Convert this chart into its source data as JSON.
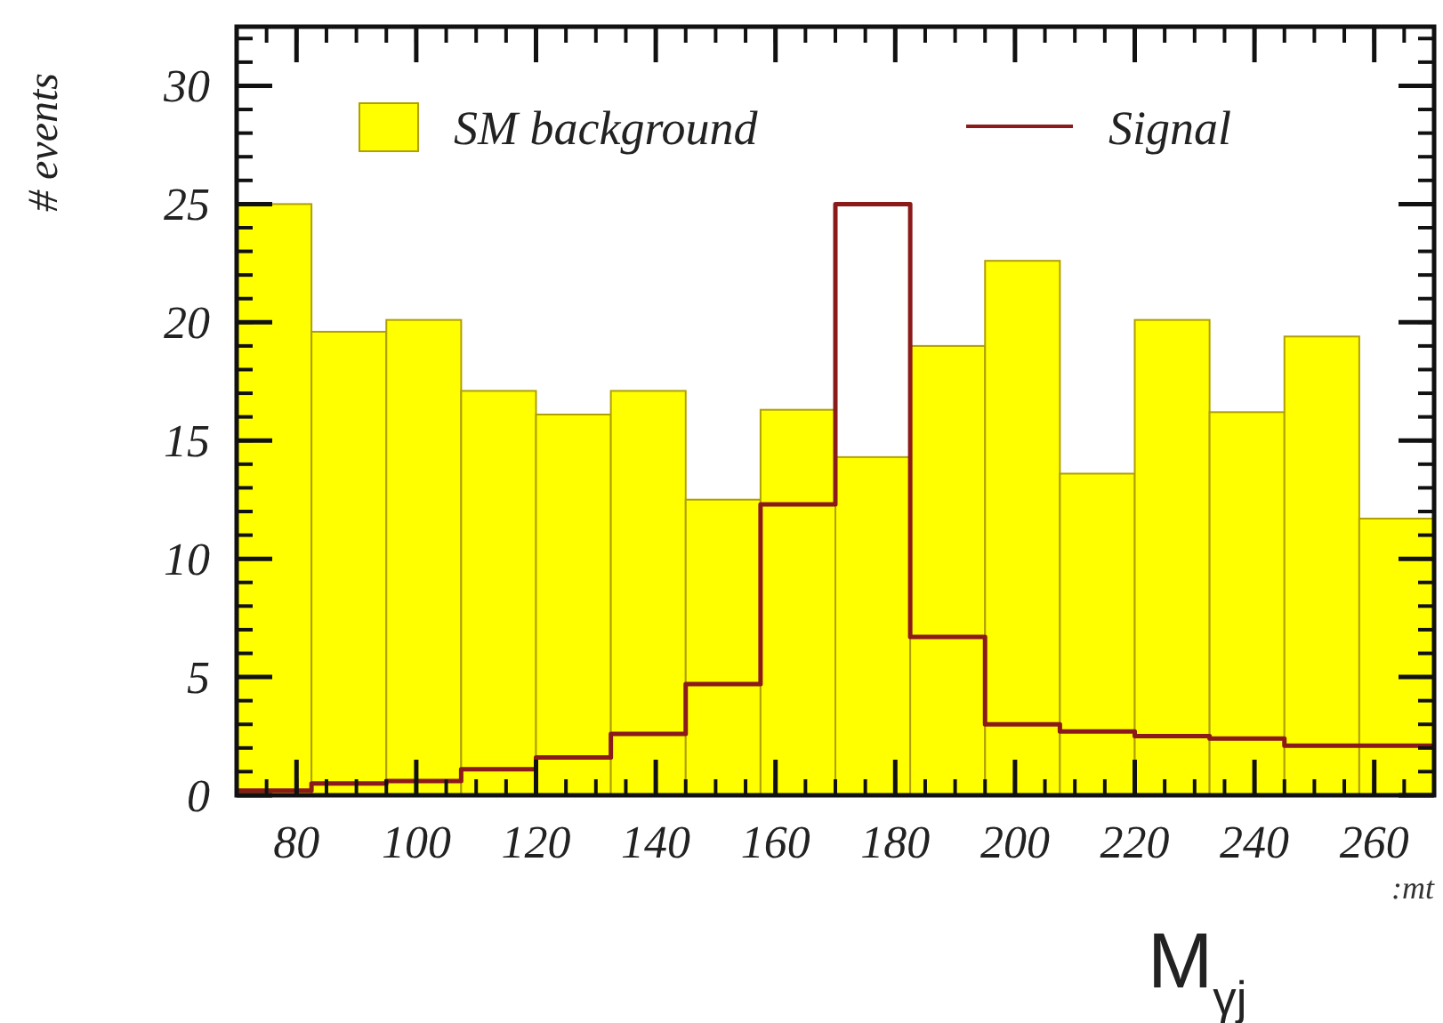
{
  "chart_data": {
    "type": "histogram",
    "ylabel": "# events",
    "xlabel": "M$_{γj}$",
    "annotations": [
      ":mt"
    ],
    "bins": [
      70,
      82.5,
      95,
      107.5,
      120,
      132.5,
      145,
      157.5,
      170,
      182.5,
      195,
      207.5,
      220,
      232.5,
      245,
      257.5,
      270
    ],
    "series": [
      {
        "name": "SM background",
        "color": "#ffff00",
        "values": [
          25,
          19.6,
          20.1,
          17.1,
          16.1,
          17.1,
          12.5,
          16.3,
          14.3,
          19.0,
          22.6,
          13.6,
          20.1,
          16.2,
          19.4,
          11.7
        ]
      },
      {
        "name": "Signal",
        "type": "step",
        "color": "#8b1a1a",
        "x": [
          70,
          82.5,
          95,
          107.5,
          120,
          132.5,
          145,
          157.5,
          170,
          182.5,
          195,
          207.5,
          220,
          232.5,
          245,
          257.5,
          270
        ],
        "values": [
          0.2,
          0.5,
          0.6,
          1.1,
          1.6,
          2.6,
          4.7,
          12.3,
          25,
          6.7,
          3.0,
          2.7,
          2.5,
          2.4,
          2.1,
          2.1,
          2.1
        ]
      }
    ],
    "xlim": [
      70,
      270
    ],
    "ylim": [
      0,
      32.5
    ],
    "xticks": [
      80,
      100,
      120,
      140,
      160,
      180,
      200,
      220,
      240,
      260
    ],
    "yticks": [
      0,
      5,
      10,
      15,
      20,
      25,
      30
    ],
    "grid": false,
    "legend": "top"
  }
}
